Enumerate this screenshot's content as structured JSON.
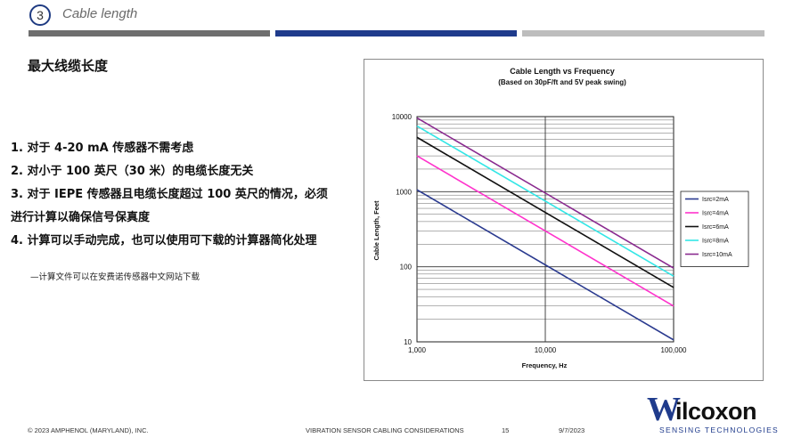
{
  "header": {
    "section_number": "3",
    "section_title": "Cable length"
  },
  "content": {
    "heading": "最大线缆长度",
    "points": [
      "1. 对于 4-20 mA 传感器不需考虑",
      "2. 对小于 100 英尺（30 米）的电缆长度无关",
      "3. 对于 IEPE 传感器且电缆长度超过 100 英尺的情况，必须",
      "进行计算以确保信号保真度",
      "4. 计算可以手动完成，也可以使用可下载的计算器简化处理"
    ],
    "note": "—计算文件可以在安费诺传感器中文网站下载"
  },
  "chart_data": {
    "type": "line",
    "title": "Cable Length vs Frequency",
    "subtitle": "(Based on 30pF/ft and 5V peak swing)",
    "xlabel": "Frequency, Hz",
    "ylabel": "Cable Length, Feet",
    "x_scale": "log",
    "y_scale": "log",
    "xlim": [
      1000,
      100000
    ],
    "ylim": [
      10,
      10000
    ],
    "x_ticks": [
      "1,000",
      "10,000",
      "100,000"
    ],
    "y_ticks": [
      "10",
      "100",
      "1000",
      "10000"
    ],
    "grid": true,
    "legend_position": "right",
    "series": [
      {
        "name": "Isrc=2mA",
        "color": "#2a3a8f",
        "x": [
          1000,
          100000
        ],
        "y": [
          1060,
          10.6
        ]
      },
      {
        "name": "Isrc=4mA",
        "color": "#ff33cc",
        "x": [
          1000,
          100000
        ],
        "y": [
          3000,
          30
        ]
      },
      {
        "name": "Isrc=6mA",
        "color": "#111111",
        "x": [
          1000,
          100000
        ],
        "y": [
          5300,
          53
        ]
      },
      {
        "name": "Isrc=8mA",
        "color": "#33e6e6",
        "x": [
          1000,
          100000
        ],
        "y": [
          7500,
          75
        ]
      },
      {
        "name": "Isrc=10mA",
        "color": "#8a2a8f",
        "x": [
          1000,
          100000
        ],
        "y": [
          9600,
          96
        ]
      }
    ]
  },
  "footer": {
    "copyright": "© 2023 AMPHENOL (MARYLAND), INC.",
    "doc_title": "VIBRATION SENSOR CABLING CONSIDERATIONS",
    "page": "15",
    "date": "9/7/2023"
  },
  "logo": {
    "mark": "W",
    "name": "ilcoxon",
    "tagline": "SENSING TECHNOLOGIES"
  }
}
